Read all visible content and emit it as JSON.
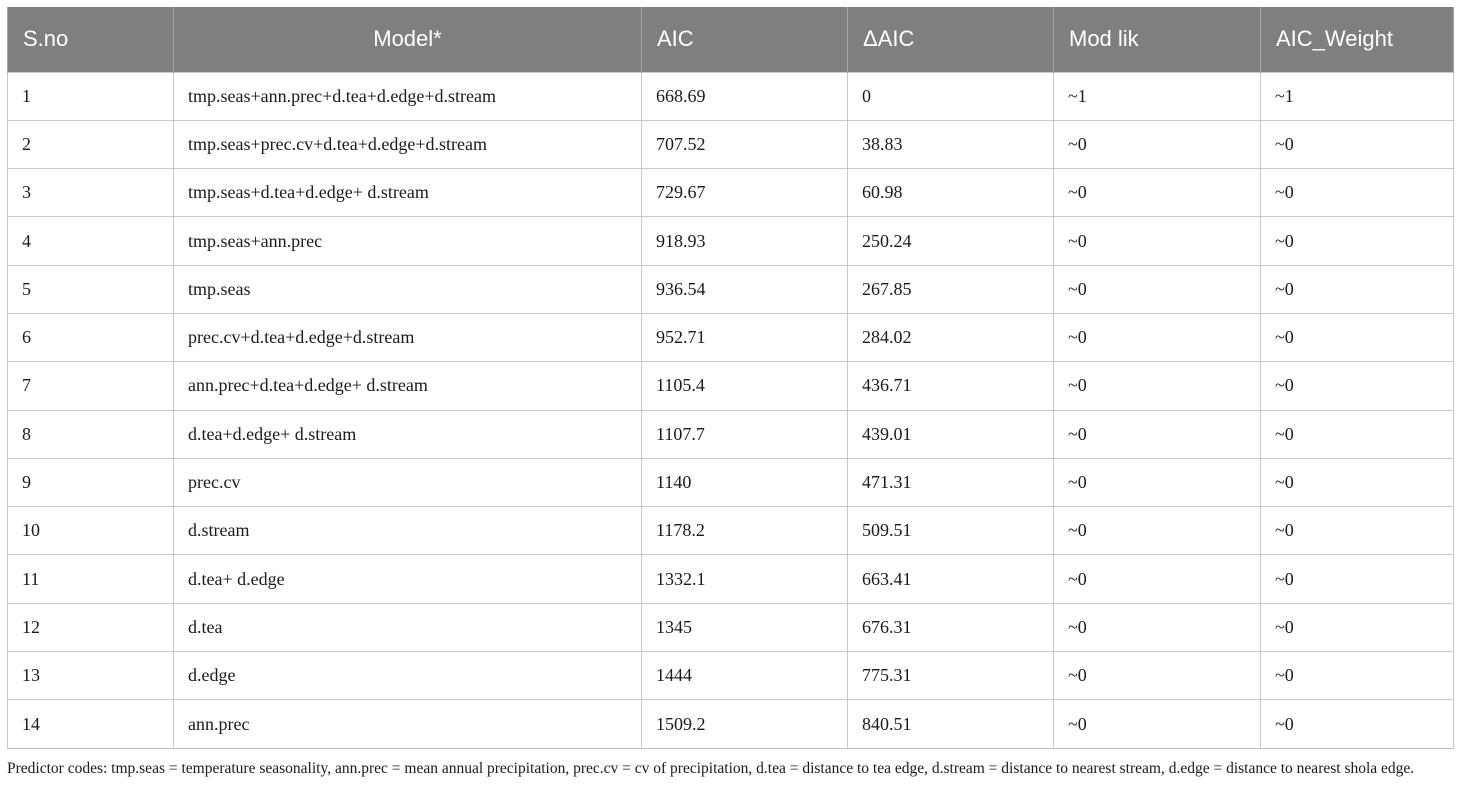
{
  "table": {
    "headers": [
      "S.no",
      "Model*",
      "AIC",
      "ΔAIC",
      "Mod lik",
      "AIC_Weight"
    ],
    "rows": [
      [
        "1",
        "tmp.seas+ann.prec+d.tea+d.edge+d.stream",
        "668.69",
        "0",
        "~1",
        "~1"
      ],
      [
        "2",
        "tmp.seas+prec.cv+d.tea+d.edge+d.stream",
        "707.52",
        "38.83",
        "~0",
        "~0"
      ],
      [
        "3",
        "tmp.seas+d.tea+d.edge+ d.stream",
        "729.67",
        "60.98",
        "~0",
        "~0"
      ],
      [
        "4",
        "tmp.seas+ann.prec",
        "918.93",
        "250.24",
        "~0",
        "~0"
      ],
      [
        "5",
        "tmp.seas",
        "936.54",
        "267.85",
        "~0",
        "~0"
      ],
      [
        "6",
        "prec.cv+d.tea+d.edge+d.stream",
        "952.71",
        "284.02",
        "~0",
        "~0"
      ],
      [
        "7",
        "ann.prec+d.tea+d.edge+ d.stream",
        "1105.4",
        "436.71",
        "~0",
        "~0"
      ],
      [
        "8",
        "d.tea+d.edge+ d.stream",
        "1107.7",
        "439.01",
        "~0",
        "~0"
      ],
      [
        "9",
        "prec.cv",
        "1140",
        "471.31",
        "~0",
        "~0"
      ],
      [
        "10",
        "d.stream",
        "1178.2",
        "509.51",
        "~0",
        "~0"
      ],
      [
        "11",
        "d.tea+ d.edge",
        "1332.1",
        "663.41",
        "~0",
        "~0"
      ],
      [
        "12",
        "d.tea",
        "1345",
        "676.31",
        "~0",
        "~0"
      ],
      [
        "13",
        "d.edge",
        "1444",
        "775.31",
        "~0",
        "~0"
      ],
      [
        "14",
        "ann.prec",
        "1509.2",
        "840.51",
        "~0",
        "~0"
      ]
    ]
  },
  "footnote": "Predictor codes: tmp.seas = temperature seasonality, ann.prec = mean annual precipitation, prec.cv = cv of precipitation, d.tea = distance to tea edge, d.stream = distance to nearest stream, d.edge = distance to nearest shola edge."
}
